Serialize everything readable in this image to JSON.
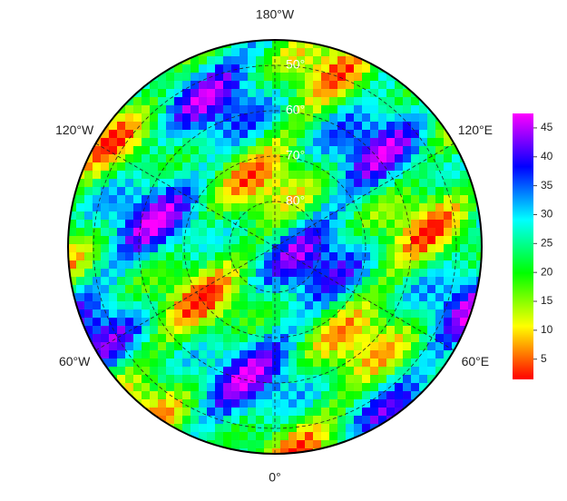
{
  "map": {
    "meridians": [
      {
        "value": 180,
        "label": "180°W"
      },
      {
        "value": 120,
        "label": "120°E"
      },
      {
        "value": 60,
        "label": "60°E"
      },
      {
        "value": 0,
        "label": "0°"
      },
      {
        "value": -60,
        "label": "60°W"
      },
      {
        "value": -120,
        "label": "120°W"
      }
    ],
    "parallels": [
      {
        "value": 50,
        "label": "50°"
      },
      {
        "value": 60,
        "label": "60°"
      },
      {
        "value": 70,
        "label": "70°"
      },
      {
        "value": 80,
        "label": "80°"
      }
    ],
    "colorbar": {
      "range": [
        1.5,
        47.5
      ],
      "ticks": [
        5,
        10,
        15,
        20,
        25,
        30,
        35,
        40,
        45
      ],
      "colors": [
        "#ff0000",
        "#ff8000",
        "#ffff00",
        "#80ff00",
        "#00ff00",
        "#00ff80",
        "#00ffff",
        "#0080ff",
        "#0000ff",
        "#8000ff",
        "#ff00ff"
      ]
    }
  }
}
